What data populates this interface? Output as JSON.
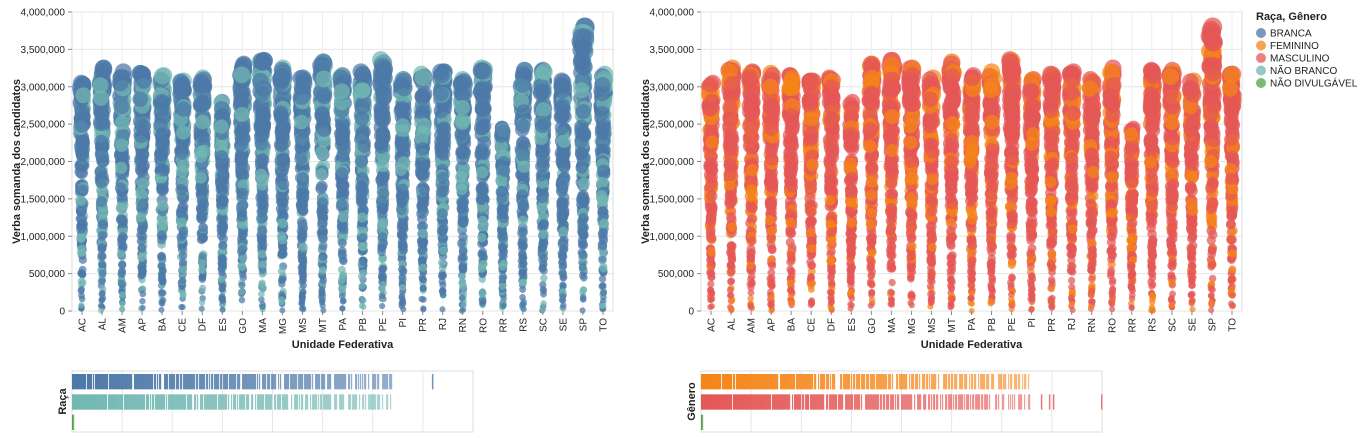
{
  "chart_data": [
    {
      "type": "scatter",
      "xlabel": "Unidade Federativa",
      "ylabel": "Verba somanda dos candidatos",
      "ylim": [
        0,
        4000000
      ],
      "yticks": [
        "0",
        "500,000",
        "1,000,000",
        "1,500,000",
        "2,000,000",
        "2,500,000",
        "3,000,000",
        "3,500,000",
        "4,000,000"
      ],
      "categories": [
        "AC",
        "AL",
        "AM",
        "AP",
        "BA",
        "CE",
        "DF",
        "ES",
        "GO",
        "MA",
        "MG",
        "MS",
        "MT",
        "PA",
        "PB",
        "PE",
        "PI",
        "PR",
        "RJ",
        "RN",
        "RO",
        "RR",
        "RS",
        "SC",
        "SE",
        "SP",
        "TO"
      ],
      "category_max": [
        3050000,
        3250000,
        3200000,
        3180000,
        3150000,
        3080000,
        3120000,
        2800000,
        3300000,
        3350000,
        3250000,
        3120000,
        3330000,
        3150000,
        3200000,
        3360000,
        3100000,
        3170000,
        3200000,
        3100000,
        3250000,
        2450000,
        3220000,
        3220000,
        3080000,
        3800000,
        3170000
      ],
      "grid": true,
      "encoding": "color by Raça",
      "series": [
        {
          "name": "BRANCA",
          "color": "#4c78a8"
        },
        {
          "name": "NÃO BRANCO",
          "color": "#72b7b2"
        }
      ]
    },
    {
      "type": "scatter",
      "xlabel": "Unidade Federativa",
      "ylabel": "Verba somanda dos candidatos",
      "ylim": [
        0,
        4000000
      ],
      "yticks": [
        "0",
        "500,000",
        "1,000,000",
        "1,500,000",
        "2,000,000",
        "2,500,000",
        "3,000,000",
        "3,500,000",
        "4,000,000"
      ],
      "categories": [
        "AC",
        "AL",
        "AM",
        "AP",
        "BA",
        "CE",
        "DF",
        "ES",
        "GO",
        "MA",
        "MG",
        "MS",
        "MT",
        "PA",
        "PB",
        "PE",
        "PI",
        "PR",
        "RJ",
        "RN",
        "RO",
        "RR",
        "RS",
        "SC",
        "SE",
        "SP",
        "TO"
      ],
      "category_max": [
        3050000,
        3250000,
        3200000,
        3180000,
        3150000,
        3080000,
        3120000,
        2800000,
        3300000,
        3350000,
        3250000,
        3120000,
        3330000,
        3150000,
        3200000,
        3360000,
        3100000,
        3170000,
        3200000,
        3100000,
        3250000,
        2450000,
        3220000,
        3220000,
        3080000,
        3800000,
        3170000
      ],
      "grid": true,
      "encoding": "color by Gênero",
      "series": [
        {
          "name": "FEMININO",
          "color": "#f58518"
        },
        {
          "name": "MASCULINO",
          "color": "#e45756"
        }
      ]
    },
    {
      "type": "strip",
      "ylabel": "Raça",
      "rows": [
        {
          "name": "BRANCA",
          "color": "#4c78a8",
          "fill_to": 0.8,
          "outliers": [
            0.9
          ]
        },
        {
          "name": "NÃO BRANCO",
          "color": "#72b7b2",
          "fill_to": 0.8,
          "outliers": []
        },
        {
          "name": "NÃO DIVULGÁVEL",
          "color": "#54a24b",
          "fill_to": 0.005,
          "outliers": []
        }
      ]
    },
    {
      "type": "strip",
      "ylabel": "Gênero",
      "rows": [
        {
          "name": "FEMININO",
          "color": "#f58518",
          "fill_to": 0.82,
          "outliers": []
        },
        {
          "name": "MASCULINO",
          "color": "#e45756",
          "fill_to": 0.82,
          "outliers": [
            0.85,
            0.87,
            0.88,
            1.0
          ]
        },
        {
          "name": "NÃO DIVULGÁVEL",
          "color": "#54a24b",
          "fill_to": 0.005,
          "outliers": []
        }
      ]
    }
  ],
  "legend": {
    "title": "Raça, Gênero",
    "placement": "top-right",
    "items": [
      {
        "label": "BRANCA",
        "color": "#4c78a8"
      },
      {
        "label": "FEMININO",
        "color": "#f58518"
      },
      {
        "label": "MASCULINO",
        "color": "#e45756"
      },
      {
        "label": "NÃO BRANCO",
        "color": "#72b7b2"
      },
      {
        "label": "NÃO DIVULGÁVEL",
        "color": "#54a24b"
      }
    ]
  }
}
